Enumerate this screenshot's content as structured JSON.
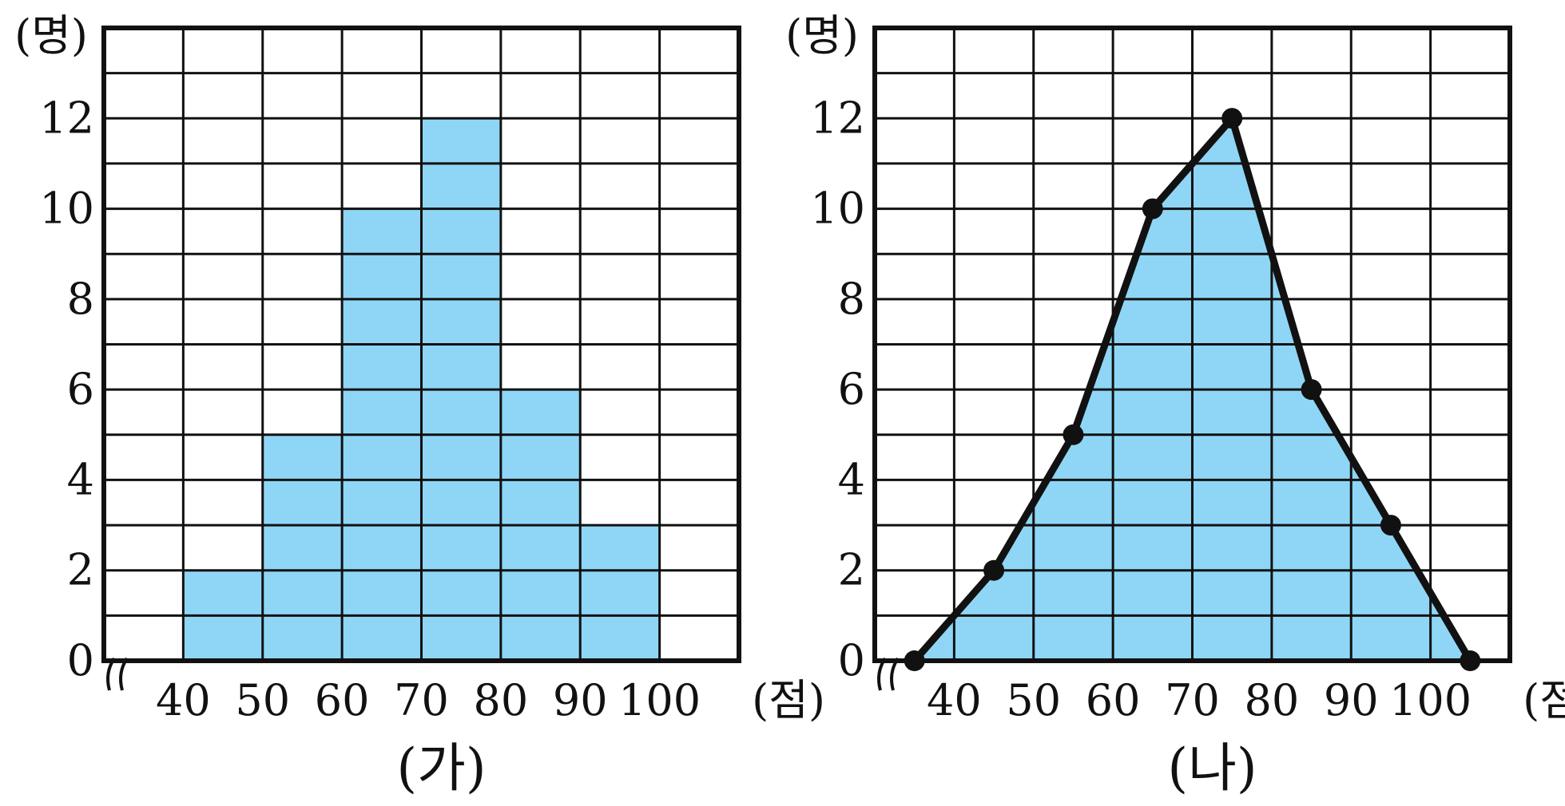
{
  "chart_data": [
    {
      "type": "bar",
      "caption": "(가)",
      "y_unit": "(명)",
      "x_unit": "(점)",
      "categories": [
        "40~50",
        "50~60",
        "60~70",
        "70~80",
        "80~90",
        "90~100"
      ],
      "x_tick_labels": [
        "40",
        "50",
        "60",
        "70",
        "80",
        "90",
        "100"
      ],
      "values": [
        2,
        5,
        10,
        12,
        6,
        3
      ],
      "y_tick_labels": [
        "0",
        "2",
        "4",
        "6",
        "8",
        "10",
        "12"
      ],
      "ylim": [
        0,
        14
      ],
      "xlim": [
        30,
        110
      ],
      "axis_break": true,
      "grid": true,
      "bar_color": "#8fd6f6"
    },
    {
      "type": "line",
      "caption": "(나)",
      "y_unit": "(명)",
      "x_unit": "(점)",
      "x": [
        35,
        45,
        55,
        65,
        75,
        85,
        95,
        105
      ],
      "values": [
        0,
        2,
        5,
        10,
        12,
        6,
        3,
        0
      ],
      "x_tick_labels": [
        "40",
        "50",
        "60",
        "70",
        "80",
        "90",
        "100"
      ],
      "y_tick_labels": [
        "0",
        "2",
        "4",
        "6",
        "8",
        "10",
        "12"
      ],
      "ylim": [
        0,
        14
      ],
      "xlim": [
        30,
        110
      ],
      "axis_break": true,
      "grid": true,
      "fill_color": "#8fd6f6",
      "line_color": "#111111"
    }
  ]
}
